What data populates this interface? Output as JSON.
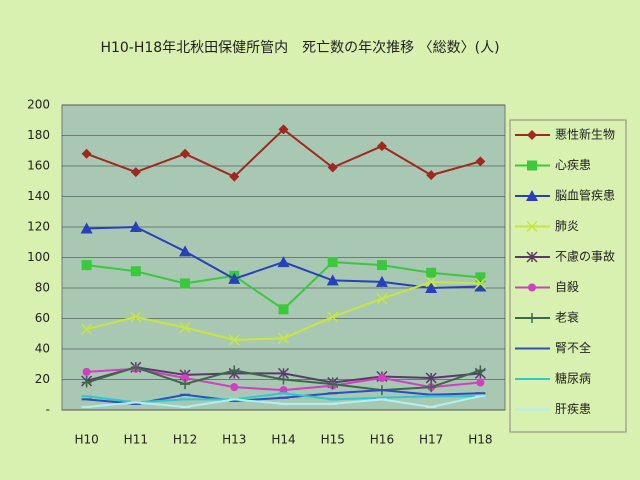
{
  "chart_data": {
    "type": "line",
    "title": "H10-H18年北秋田保健所管内　死亡数の年次推移 〈総数〉(人)",
    "categories": [
      "H10",
      "H11",
      "H12",
      "H13",
      "H14",
      "H15",
      "H16",
      "H17",
      "H18"
    ],
    "ylim": [
      0,
      200
    ],
    "yticks": [
      {
        "value": 0,
        "label": "-"
      },
      20,
      40,
      60,
      80,
      100,
      120,
      140,
      160,
      180,
      200
    ],
    "grid": true,
    "legend": "right",
    "series": [
      {
        "name": "悪性新生物",
        "color": "#a0281e",
        "marker": "diamond",
        "values": [
          168,
          156,
          168,
          153,
          184,
          159,
          173,
          154,
          163
        ]
      },
      {
        "name": "心疾患",
        "color": "#3cc83c",
        "marker": "square",
        "values": [
          95,
          91,
          83,
          88,
          66,
          97,
          95,
          90,
          87
        ]
      },
      {
        "name": "脳血管疾患",
        "color": "#2840b8",
        "marker": "triangle",
        "values": [
          119,
          120,
          104,
          86,
          97,
          85,
          84,
          80,
          81
        ]
      },
      {
        "name": "肺炎",
        "color": "#c8e640",
        "marker": "x",
        "values": [
          53,
          61,
          54,
          46,
          47,
          61,
          73,
          84,
          83
        ]
      },
      {
        "name": "不慮の事故",
        "color": "#5a3a6a",
        "marker": "star",
        "values": [
          19,
          28,
          23,
          24,
          24,
          18,
          22,
          21,
          24
        ]
      },
      {
        "name": "自殺",
        "color": "#d040c0",
        "marker": "circle",
        "values": [
          25,
          27,
          21,
          15,
          13,
          16,
          21,
          15,
          18
        ]
      },
      {
        "name": "老衰",
        "color": "#3a6a4a",
        "marker": "plus",
        "values": [
          18,
          28,
          17,
          26,
          20,
          17,
          13,
          15,
          26
        ]
      },
      {
        "name": "腎不全",
        "color": "#2850c0",
        "marker": "dash",
        "values": [
          7,
          4,
          10,
          6,
          8,
          11,
          13,
          10,
          11
        ]
      },
      {
        "name": "糖尿病",
        "color": "#30c8c8",
        "marker": "dash",
        "values": [
          9,
          5,
          7,
          7,
          11,
          7,
          8,
          9,
          9
        ]
      },
      {
        "name": "肝疾患",
        "color": "#b0f0f0",
        "marker": "dash",
        "values": [
          2,
          5,
          2,
          7,
          4,
          4,
          7,
          2,
          9
        ]
      }
    ]
  }
}
